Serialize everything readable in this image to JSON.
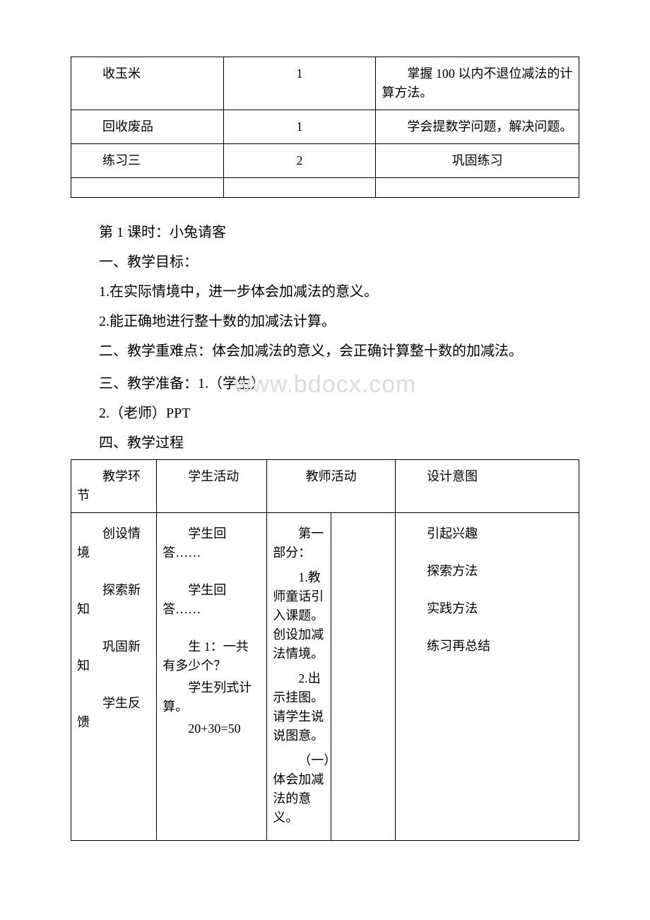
{
  "colors": {
    "text": "#000000",
    "border": "#000000",
    "background": "#ffffff",
    "watermark": "#dcdcdc"
  },
  "typography": {
    "body_font": "SimSun",
    "body_size_pt": 15,
    "watermark_font": "Arial",
    "watermark_size_pt": 26
  },
  "table1": {
    "type": "table",
    "columns_width_pct": [
      30,
      30,
      40
    ],
    "rows": [
      {
        "c1": "收玉米",
        "c2": "1",
        "c3": "掌握 100 以内不退位减法的计算方法。"
      },
      {
        "c1": "回收废品",
        "c2": "1",
        "c3": "学会提数学问题，解决问题。"
      },
      {
        "c1": "练习三",
        "c2": "2",
        "c3": "巩固练习"
      },
      {
        "c1": "",
        "c2": "",
        "c3": ""
      }
    ]
  },
  "lesson": {
    "title": "第 1 课时：小兔请客",
    "goal_heading": "一、教学目标：",
    "goal_1": "1.在实际情境中，进一步体会加减法的意义。",
    "goal_2": "2.能正确地进行整十数的加减法计算。",
    "difficulty": "二、教学重难点：体会加减法的意义，会正确计算整十数的加减法。",
    "prep_1": "三、教学准备：1.（学生）",
    "prep_2": "2.（老师）PPT",
    "process_heading": "四、教学过程"
  },
  "watermark": "www.bdocx.com",
  "table2": {
    "type": "table",
    "columns_width_pct": [
      14,
      18,
      21,
      30,
      17
    ],
    "header": {
      "c1": "教学环节",
      "c2": "学生活动",
      "c3": "教师活动",
      "c5": "设计意图"
    },
    "body": {
      "c1_p1": "创设情境",
      "c1_p2": "探索新知",
      "c1_p3": "巩固新知",
      "c1_p4": "学生反馈",
      "c2_p1": "学生回答……",
      "c2_p2": "学生回答……",
      "c2_p3": "生 1：一共有多少个？",
      "c2_p4": "学生列式计算。",
      "c2_p5": "20+30=50",
      "c3_p1": "第一部分：",
      "c3_p2": "1.教师童话引入课题。创设加减法情境。",
      "c3_p3": "2.出示挂图。请学生说说图意。",
      "c3_p4": "（一）体会加减法的意义。",
      "c5_p1": "引起兴趣",
      "c5_p2": "探索方法",
      "c5_p3": "实践方法",
      "c5_p4": "练习再总结"
    }
  }
}
